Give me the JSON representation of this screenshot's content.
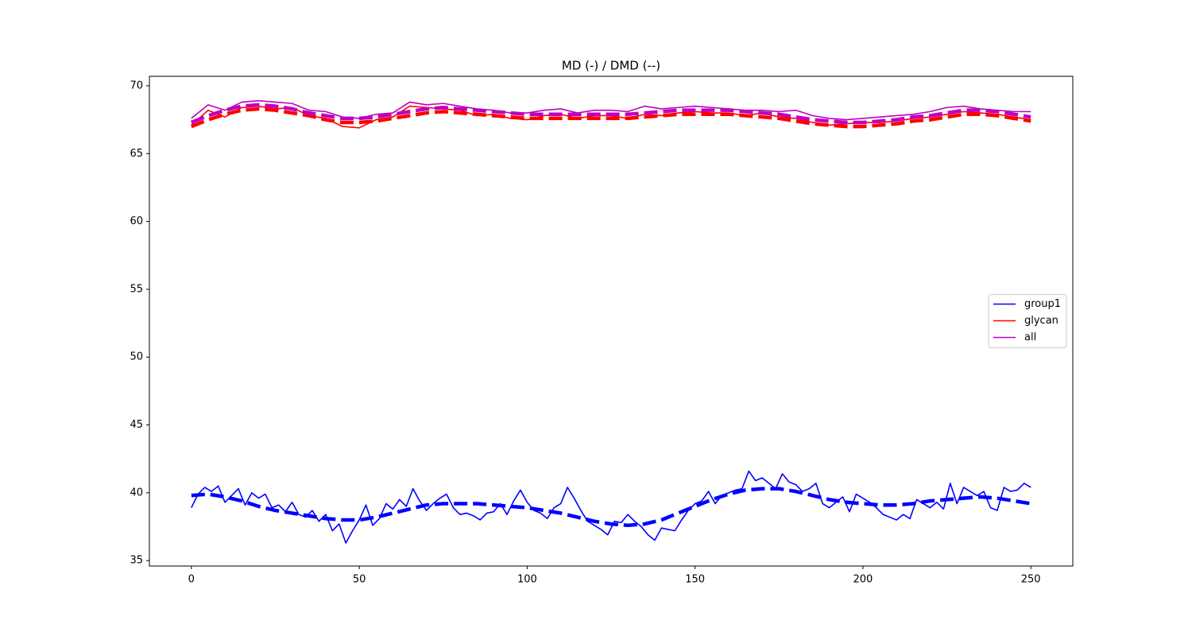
{
  "chart_data": {
    "type": "line",
    "title": "MD (-) / DMD (--)",
    "xlim": [
      -12.5,
      262.5
    ],
    "ylim": [
      34.6,
      70.7
    ],
    "xticks": [
      0,
      50,
      100,
      150,
      200,
      250
    ],
    "yticks": [
      35,
      40,
      45,
      50,
      55,
      60,
      65,
      70
    ],
    "grid": false,
    "legend": "center right",
    "series": [
      {
        "name": "group1",
        "color": "#0000ff",
        "style": "solid",
        "x": [
          0,
          2,
          4,
          6,
          8,
          10,
          12,
          14,
          16,
          18,
          20,
          22,
          24,
          26,
          28,
          30,
          32,
          34,
          36,
          38,
          40,
          42,
          44,
          46,
          48,
          50,
          52,
          54,
          56,
          58,
          60,
          62,
          64,
          66,
          68,
          70,
          72,
          74,
          76,
          78,
          80,
          82,
          84,
          86,
          88,
          90,
          92,
          94,
          96,
          98,
          100,
          102,
          104,
          106,
          108,
          110,
          112,
          114,
          116,
          118,
          120,
          122,
          124,
          126,
          128,
          130,
          132,
          134,
          136,
          138,
          140,
          142,
          144,
          146,
          148,
          150,
          152,
          154,
          156,
          158,
          160,
          162,
          164,
          166,
          168,
          170,
          172,
          174,
          176,
          178,
          180,
          182,
          184,
          186,
          188,
          190,
          192,
          194,
          196,
          198,
          200,
          202,
          204,
          206,
          208,
          210,
          212,
          214,
          216,
          218,
          220,
          222,
          224,
          226,
          228,
          230,
          232,
          234,
          236,
          238,
          240,
          242,
          244,
          246,
          248,
          250
        ],
        "values": [
          38.9,
          39.9,
          40.4,
          40.1,
          40.5,
          39.3,
          39.8,
          40.3,
          39.1,
          40.0,
          39.6,
          39.9,
          38.9,
          39.1,
          38.6,
          39.3,
          38.4,
          38.2,
          38.7,
          37.9,
          38.4,
          37.2,
          37.7,
          36.3,
          37.2,
          38.0,
          39.1,
          37.6,
          38.1,
          39.2,
          38.8,
          39.5,
          39.0,
          40.3,
          39.4,
          38.7,
          39.2,
          39.6,
          39.9,
          38.9,
          38.4,
          38.5,
          38.3,
          38.0,
          38.5,
          38.6,
          39.2,
          38.4,
          39.4,
          40.2,
          39.3,
          38.7,
          38.5,
          38.1,
          38.9,
          39.2,
          40.4,
          39.6,
          38.7,
          37.9,
          37.6,
          37.3,
          36.9,
          37.9,
          37.8,
          38.4,
          37.9,
          37.5,
          36.9,
          36.5,
          37.4,
          37.3,
          37.2,
          38.0,
          38.7,
          39.2,
          39.4,
          40.1,
          39.2,
          39.8,
          40.0,
          40.2,
          40.3,
          41.6,
          40.9,
          41.1,
          40.7,
          40.3,
          41.4,
          40.8,
          40.6,
          40.1,
          40.3,
          40.7,
          39.2,
          38.9,
          39.3,
          39.7,
          38.6,
          39.9,
          39.6,
          39.3,
          38.9,
          38.4,
          38.2,
          38.0,
          38.4,
          38.1,
          39.5,
          39.2,
          38.9,
          39.3,
          38.8,
          40.7,
          39.2,
          40.4,
          40.1,
          39.8,
          40.1,
          38.9,
          38.7,
          40.4,
          40.1,
          40.2,
          40.7,
          40.4
        ]
      },
      {
        "name": "glycan",
        "color": "#ff0000",
        "style": "solid",
        "x": [
          0,
          5,
          10,
          15,
          20,
          25,
          30,
          35,
          40,
          45,
          50,
          55,
          60,
          65,
          70,
          75,
          80,
          85,
          90,
          95,
          100,
          105,
          110,
          115,
          120,
          125,
          130,
          135,
          140,
          145,
          150,
          155,
          160,
          165,
          170,
          175,
          180,
          185,
          190,
          195,
          200,
          205,
          210,
          215,
          220,
          225,
          230,
          235,
          240,
          245,
          250
        ],
        "values": [
          67.1,
          68.2,
          67.7,
          68.4,
          68.5,
          68.3,
          68.4,
          67.8,
          67.6,
          67.0,
          66.9,
          67.5,
          67.7,
          68.5,
          68.4,
          68.3,
          68.2,
          67.8,
          67.9,
          67.6,
          67.5,
          67.8,
          67.9,
          67.6,
          67.8,
          67.8,
          67.6,
          67.9,
          67.8,
          68.0,
          68.1,
          68.0,
          68.0,
          67.8,
          68.0,
          67.7,
          67.6,
          67.3,
          67.1,
          67.2,
          67.3,
          67.3,
          67.4,
          67.6,
          67.7,
          67.9,
          68.1,
          68.0,
          67.9,
          67.7,
          67.5
        ]
      },
      {
        "name": "all",
        "color": "#bf00bf",
        "style": "solid",
        "x": [
          0,
          5,
          10,
          15,
          20,
          25,
          30,
          35,
          40,
          45,
          50,
          55,
          60,
          65,
          70,
          75,
          80,
          85,
          90,
          95,
          100,
          105,
          110,
          115,
          120,
          125,
          130,
          135,
          140,
          145,
          150,
          155,
          160,
          165,
          170,
          175,
          180,
          185,
          190,
          195,
          200,
          205,
          210,
          215,
          220,
          225,
          230,
          235,
          240,
          245,
          250
        ],
        "values": [
          67.6,
          68.6,
          68.2,
          68.8,
          68.9,
          68.8,
          68.7,
          68.2,
          68.1,
          67.7,
          67.6,
          67.9,
          68.0,
          68.8,
          68.6,
          68.7,
          68.5,
          68.3,
          68.2,
          68.0,
          68.0,
          68.2,
          68.3,
          68.0,
          68.2,
          68.2,
          68.1,
          68.5,
          68.3,
          68.4,
          68.5,
          68.4,
          68.3,
          68.2,
          68.2,
          68.1,
          68.2,
          67.8,
          67.6,
          67.5,
          67.6,
          67.7,
          67.8,
          67.9,
          68.1,
          68.4,
          68.5,
          68.3,
          68.2,
          68.1,
          68.1
        ]
      },
      {
        "color": "#0000ff",
        "style": "dashed",
        "x": [
          0,
          5,
          10,
          15,
          20,
          25,
          30,
          35,
          40,
          45,
          50,
          55,
          60,
          65,
          70,
          75,
          80,
          85,
          90,
          95,
          100,
          105,
          110,
          115,
          120,
          125,
          130,
          135,
          140,
          145,
          150,
          155,
          160,
          165,
          170,
          175,
          180,
          185,
          190,
          195,
          200,
          205,
          210,
          215,
          220,
          225,
          230,
          235,
          240,
          245,
          250
        ],
        "values": [
          39.8,
          39.9,
          39.7,
          39.4,
          39.0,
          38.7,
          38.5,
          38.3,
          38.1,
          38.0,
          38.0,
          38.2,
          38.5,
          38.8,
          39.1,
          39.2,
          39.2,
          39.2,
          39.1,
          39.0,
          38.9,
          38.7,
          38.5,
          38.2,
          37.9,
          37.7,
          37.6,
          37.7,
          38.0,
          38.5,
          39.0,
          39.5,
          39.9,
          40.2,
          40.3,
          40.3,
          40.1,
          39.8,
          39.5,
          39.3,
          39.2,
          39.1,
          39.1,
          39.2,
          39.4,
          39.5,
          39.6,
          39.7,
          39.6,
          39.4,
          39.2
        ]
      },
      {
        "color": "#ff0000",
        "style": "dashed",
        "x": [
          0,
          5,
          10,
          15,
          20,
          25,
          30,
          35,
          40,
          45,
          50,
          55,
          60,
          65,
          70,
          75,
          80,
          85,
          90,
          95,
          100,
          105,
          110,
          115,
          120,
          125,
          130,
          135,
          140,
          145,
          150,
          155,
          160,
          165,
          170,
          175,
          180,
          185,
          190,
          195,
          200,
          205,
          210,
          215,
          220,
          225,
          230,
          235,
          240,
          245,
          250
        ],
        "values": [
          67.0,
          67.5,
          67.9,
          68.2,
          68.3,
          68.2,
          68.0,
          67.8,
          67.5,
          67.3,
          67.3,
          67.4,
          67.6,
          67.8,
          68.0,
          68.1,
          68.0,
          67.9,
          67.8,
          67.7,
          67.6,
          67.6,
          67.6,
          67.6,
          67.6,
          67.6,
          67.6,
          67.7,
          67.8,
          67.9,
          67.9,
          67.9,
          67.9,
          67.8,
          67.7,
          67.6,
          67.4,
          67.2,
          67.1,
          67.0,
          67.0,
          67.1,
          67.2,
          67.4,
          67.5,
          67.7,
          67.9,
          67.9,
          67.8,
          67.6,
          67.4
        ]
      },
      {
        "color": "#bf00bf",
        "style": "dashed",
        "x": [
          0,
          5,
          10,
          15,
          20,
          25,
          30,
          35,
          40,
          45,
          50,
          55,
          60,
          65,
          70,
          75,
          80,
          85,
          90,
          95,
          100,
          105,
          110,
          115,
          120,
          125,
          130,
          135,
          140,
          145,
          150,
          155,
          160,
          165,
          170,
          175,
          180,
          185,
          190,
          195,
          200,
          205,
          210,
          215,
          220,
          225,
          230,
          235,
          240,
          245,
          250
        ],
        "values": [
          67.3,
          67.8,
          68.2,
          68.5,
          68.6,
          68.5,
          68.3,
          68.0,
          67.8,
          67.6,
          67.6,
          67.7,
          67.9,
          68.1,
          68.3,
          68.4,
          68.3,
          68.2,
          68.1,
          68.0,
          67.9,
          67.9,
          67.9,
          67.9,
          67.9,
          67.9,
          67.9,
          68.0,
          68.1,
          68.2,
          68.2,
          68.2,
          68.2,
          68.1,
          68.0,
          67.9,
          67.7,
          67.5,
          67.4,
          67.3,
          67.3,
          67.4,
          67.5,
          67.7,
          67.8,
          68.0,
          68.2,
          68.2,
          68.1,
          67.9,
          67.7
        ]
      }
    ]
  }
}
